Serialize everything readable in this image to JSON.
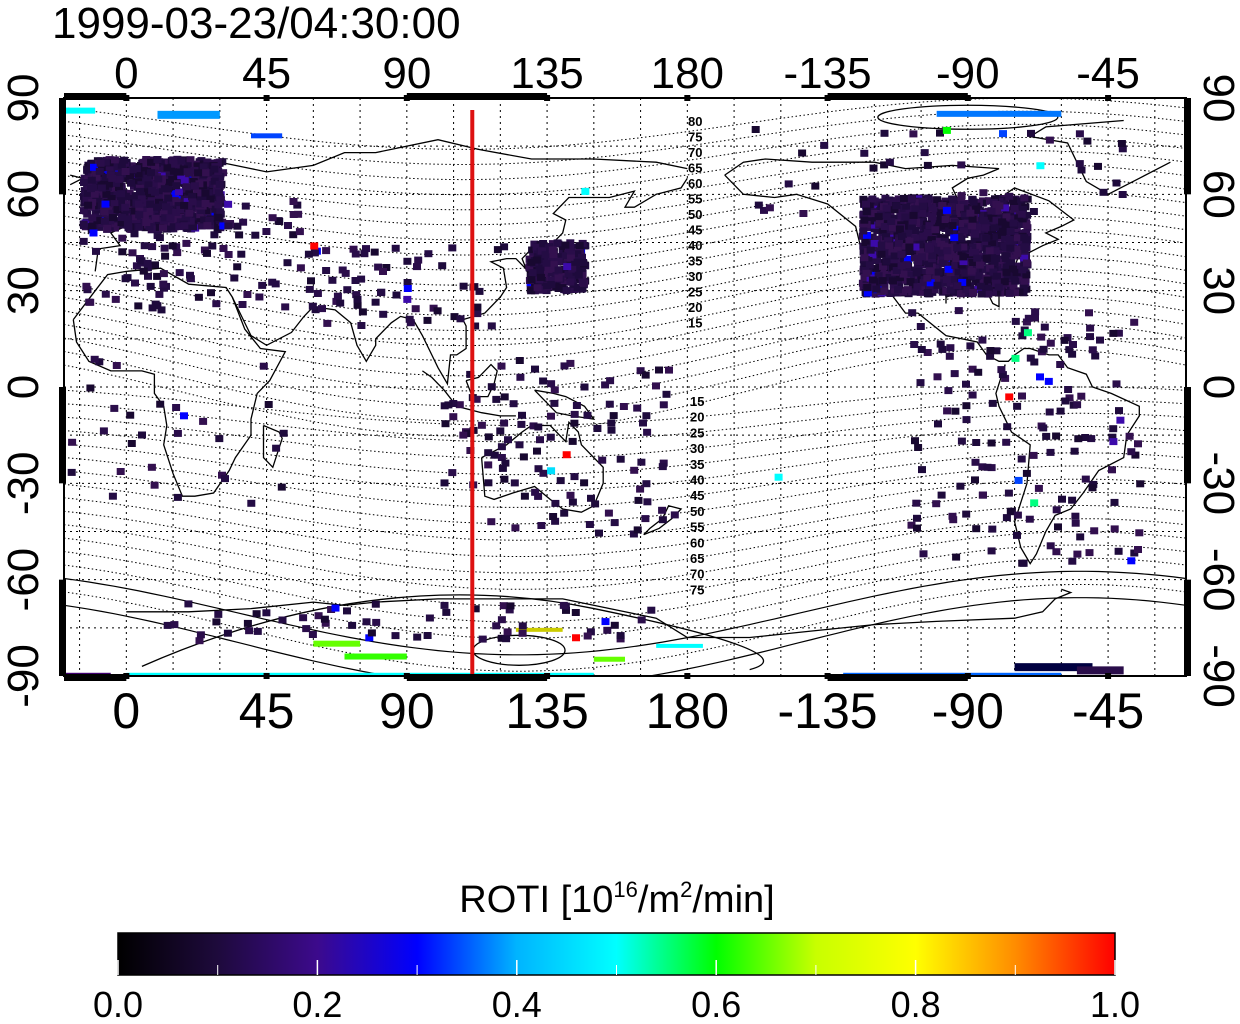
{
  "timestamp": "1999-03-23/04:30:00",
  "top_axis": {
    "ticks": [
      "0",
      "45",
      "90",
      "135",
      "180",
      "-135",
      "-90",
      "-45"
    ]
  },
  "bottom_axis": {
    "ticks": [
      "0",
      "45",
      "90",
      "135",
      "180",
      "-135",
      "-90",
      "-45"
    ]
  },
  "left_axis": {
    "ticks": [
      "90",
      "60",
      "30",
      "0",
      "-30",
      "-60",
      "-90"
    ]
  },
  "right_axis": {
    "ticks": [
      "90",
      "60",
      "30",
      "0",
      "-30",
      "-60",
      "-90"
    ]
  },
  "contour_labels": {
    "north": [
      "80",
      "75",
      "70",
      "65",
      "60",
      "55",
      "50",
      "45",
      "40",
      "35",
      "30",
      "25",
      "20",
      "15"
    ],
    "south": [
      "15",
      "20",
      "25",
      "30",
      "35",
      "40",
      "45",
      "50",
      "55",
      "60",
      "65",
      "70",
      "75"
    ]
  },
  "colorbar": {
    "title_prefix": "ROTI  [10",
    "title_sup1": "16",
    "title_mid": "/m",
    "title_sup2": "2",
    "title_suffix": "/min]",
    "ticks": [
      "0.0",
      "0.2",
      "0.4",
      "0.6",
      "0.8",
      "1.0"
    ],
    "min": 0.0,
    "max": 1.0,
    "stops": [
      "#000000",
      "#1e0a3c",
      "#3c0a8c",
      "#0000ff",
      "#00b4ff",
      "#00ffff",
      "#00ff00",
      "#c8ff00",
      "#ffff00",
      "#ff8c00",
      "#ff0000"
    ]
  },
  "colors": {
    "midnight_line": "#dd1111",
    "coast": "#000000"
  },
  "chart_data": {
    "type": "heatmap",
    "title": "1999-03-23/04:30:00",
    "xlim": [
      -20,
      340
    ],
    "ylim": [
      -90,
      90
    ],
    "midnight_longitude": 111,
    "clusters": [
      {
        "region": "Europe",
        "lon": [
          -15,
          30
        ],
        "lat": [
          50,
          72
        ],
        "roti": 0.08
      },
      {
        "region": "Japan",
        "lon": [
          128,
          146
        ],
        "lat": [
          31,
          46
        ],
        "roti": 0.09
      },
      {
        "region": "North America",
        "lon": [
          -125,
          -72
        ],
        "lat": [
          30,
          60
        ],
        "roti": 0.1
      },
      {
        "region": "Antarctic coast",
        "lon": [
          20,
          160
        ],
        "lat": [
          -90,
          -86
        ],
        "roti": 0.4
      },
      {
        "region": "Antarctic coast west",
        "lon": [
          -120,
          -60
        ],
        "lat": [
          -90,
          -86
        ],
        "roti": 0.25
      }
    ]
  }
}
